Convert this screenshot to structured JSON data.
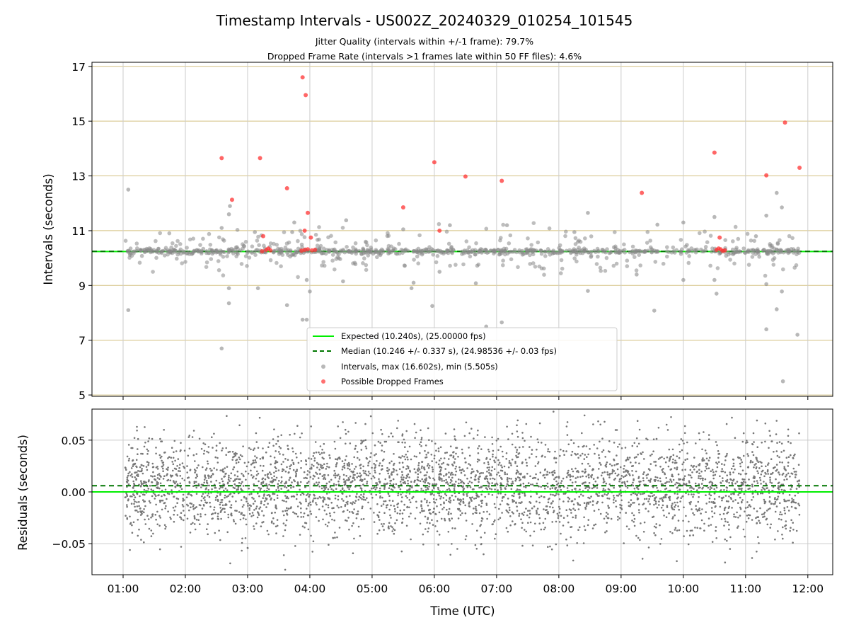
{
  "chart_data": [
    {
      "type": "scatter",
      "title": "Timestamp Intervals - US002Z_20240329_010254_101545",
      "subtitle_lines": [
        "Jitter Quality (intervals within +/-1 frame): 79.7%",
        "Dropped Frame Rate (intervals >1 frames late within 50 FF files): 4.6%"
      ],
      "ylabel": "Intervals (seconds)",
      "xlim": [
        "00:30",
        "12:24"
      ],
      "ylim": [
        4.95,
        17.15
      ],
      "yticks": [
        5,
        7,
        9,
        11,
        13,
        15,
        17
      ],
      "ygrid_color": "#d4c080",
      "xgrid": true,
      "legend_position": "lower-center",
      "lines": [
        {
          "name": "Expected (10.240s), (25.00000 fps)",
          "y": 10.24,
          "style": "solid",
          "color": "#00ee00"
        },
        {
          "name": "Median (10.246 +/- 0.337 s), (24.98536 +/- 0.03 fps)",
          "y": 10.246,
          "style": "dashed",
          "color": "#007700"
        }
      ],
      "series": [
        {
          "name": "Intervals, max (16.602s), min (5.505s)",
          "color": "#888888",
          "points": [
            [
              "01:05",
              12.5
            ],
            [
              "01:05",
              8.1
            ],
            [
              "02:35",
              6.7
            ],
            [
              "02:35",
              11.1
            ],
            [
              "02:42",
              8.9
            ],
            [
              "02:42",
              8.35
            ],
            [
              "02:42",
              11.6
            ],
            [
              "02:43",
              11.9
            ],
            [
              "03:10",
              8.9
            ],
            [
              "03:07",
              10.95
            ],
            [
              "03:38",
              8.28
            ],
            [
              "03:43",
              10.95
            ],
            [
              "03:45",
              11.3
            ],
            [
              "03:57",
              9.2
            ],
            [
              "03:53",
              7.75
            ],
            [
              "03:57",
              7.75
            ],
            [
              "04:00",
              8.78
            ],
            [
              "04:32",
              9.15
            ],
            [
              "04:35",
              11.38
            ],
            [
              "05:38",
              8.9
            ],
            [
              "05:40",
              9.1
            ],
            [
              "05:58",
              8.25
            ],
            [
              "06:05",
              9.5
            ],
            [
              "06:15",
              11.2
            ],
            [
              "06:40",
              9.08
            ],
            [
              "06:50",
              7.5
            ],
            [
              "07:05",
              7.65
            ],
            [
              "07:10",
              11.2
            ],
            [
              "08:28",
              8.8
            ],
            [
              "08:28",
              11.65
            ],
            [
              "09:32",
              8.08
            ],
            [
              "09:35",
              11.22
            ],
            [
              "09:15",
              9.4
            ],
            [
              "10:00",
              11.3
            ],
            [
              "10:00",
              9.2
            ],
            [
              "10:30",
              11.5
            ],
            [
              "10:30",
              9.2
            ],
            [
              "10:32",
              8.7
            ],
            [
              "11:20",
              11.55
            ],
            [
              "11:20",
              9.05
            ],
            [
              "11:20",
              7.4
            ],
            [
              "11:30",
              12.38
            ],
            [
              "11:30",
              8.13
            ],
            [
              "11:35",
              11.85
            ],
            [
              "11:35",
              8.78
            ],
            [
              "11:36",
              5.5
            ],
            [
              "11:50",
              7.2
            ],
            [
              "11:10",
              10.8
            ],
            [
              "08:15",
              10.95
            ],
            [
              "05:30",
              11.05
            ]
          ]
        },
        {
          "name": "Possible Dropped Frames",
          "color": "#ff3333",
          "points": [
            [
              "02:35",
              13.65
            ],
            [
              "02:45",
              12.13
            ],
            [
              "03:12",
              13.65
            ],
            [
              "03:38",
              12.55
            ],
            [
              "03:53",
              16.6
            ],
            [
              "03:56",
              15.95
            ],
            [
              "03:58",
              11.65
            ],
            [
              "03:55",
              11.0
            ],
            [
              "04:01",
              10.75
            ],
            [
              "05:30",
              11.85
            ],
            [
              "06:00",
              13.5
            ],
            [
              "06:05",
              11.0
            ],
            [
              "06:30",
              12.98
            ],
            [
              "07:05",
              12.82
            ],
            [
              "09:20",
              12.38
            ],
            [
              "10:30",
              13.85
            ],
            [
              "10:35",
              10.75
            ],
            [
              "11:20",
              13.02
            ],
            [
              "11:38",
              14.95
            ],
            [
              "11:52",
              13.3
            ],
            [
              "03:15",
              10.8
            ],
            [
              "03:18",
              10.3
            ],
            [
              "03:20",
              10.35
            ],
            [
              "03:14",
              10.25
            ],
            [
              "03:22",
              10.28
            ],
            [
              "03:55",
              10.3
            ],
            [
              "03:58",
              10.32
            ],
            [
              "04:02",
              10.28
            ],
            [
              "04:05",
              10.3
            ],
            [
              "03:52",
              10.27
            ],
            [
              "10:32",
              10.3
            ],
            [
              "10:36",
              10.32
            ],
            [
              "10:40",
              10.28
            ],
            [
              "10:34",
              10.35
            ],
            [
              "10:38",
              10.26
            ]
          ]
        }
      ]
    },
    {
      "type": "scatter",
      "title": "",
      "xlabel": "Time (UTC)",
      "ylabel": "Residuals (seconds)",
      "xlim": [
        "00:30",
        "12:24"
      ],
      "ylim": [
        -0.08,
        0.08
      ],
      "yticks": [
        -0.05,
        0.0,
        0.05
      ],
      "ytick_labels": [
        "−0.05",
        "0.00",
        "0.05"
      ],
      "xticks": [
        "01:00",
        "02:00",
        "03:00",
        "04:00",
        "05:00",
        "06:00",
        "07:00",
        "08:00",
        "09:00",
        "10:00",
        "11:00",
        "12:00"
      ],
      "grid": true,
      "lines": [
        {
          "y": 0.0,
          "style": "solid",
          "color": "#00ee00"
        },
        {
          "y": 0.006,
          "style": "dashed",
          "color": "#007700"
        }
      ],
      "series": [
        {
          "color": "#777777",
          "x_range": [
            "01:02",
            "11:52"
          ],
          "y_range": [
            -0.08,
            0.08
          ],
          "approx_points": 3800
        }
      ]
    }
  ]
}
